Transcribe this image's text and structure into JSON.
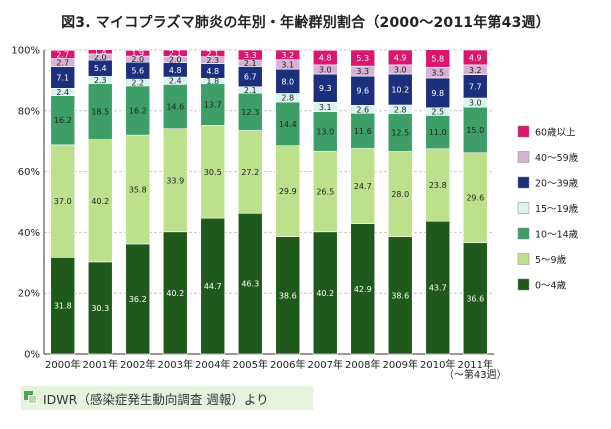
{
  "title": "図3. マイコプラズマ肺炎の年別・年齢群別割合（2000～2011年第43週）",
  "source": "IDWR（感染症発生動向調査 週報）より",
  "chart_data": {
    "type": "bar",
    "stacked": true,
    "percent": true,
    "categories": [
      "2000年",
      "2001年",
      "2002年",
      "2003年",
      "2004年",
      "2005年",
      "2006年",
      "2007年",
      "2008年",
      "2009年",
      "2010年",
      "2011年"
    ],
    "category_sublabels": [
      "",
      "",
      "",
      "",
      "",
      "",
      "",
      "",
      "",
      "",
      "",
      "（～第43週）"
    ],
    "yticks": [
      "0%",
      "20%",
      "40%",
      "60%",
      "80%",
      "100%"
    ],
    "ylim": [
      0,
      100
    ],
    "legend_position": "right",
    "series": [
      {
        "name": "0～4歳",
        "color": "#1f5a1c",
        "light_text": true,
        "values": [
          31.8,
          30.3,
          36.2,
          40.2,
          44.7,
          46.3,
          38.6,
          40.2,
          42.9,
          38.6,
          43.7,
          36.6
        ]
      },
      {
        "name": "5～9歳",
        "color": "#bde08c",
        "values": [
          37.0,
          40.2,
          35.8,
          33.9,
          30.5,
          27.2,
          29.9,
          26.5,
          24.7,
          28.0,
          23.8,
          29.6
        ]
      },
      {
        "name": "10～14歳",
        "color": "#3e9e68",
        "values": [
          16.2,
          18.5,
          16.2,
          14.6,
          13.7,
          12.3,
          14.4,
          13.0,
          11.6,
          12.5,
          11.0,
          15.0
        ]
      },
      {
        "name": "15～19歳",
        "color": "#d9f4f0",
        "values": [
          2.4,
          2.3,
          2.2,
          2.4,
          1.8,
          2.1,
          2.8,
          3.1,
          2.6,
          2.8,
          2.5,
          3.0
        ]
      },
      {
        "name": "20～39歳",
        "color": "#1b2f7c",
        "light_text": true,
        "values": [
          7.1,
          5.4,
          5.6,
          4.8,
          4.8,
          6.7,
          8.0,
          9.3,
          9.6,
          10.2,
          9.8,
          7.7
        ]
      },
      {
        "name": "40～59歳",
        "color": "#d8b2d6",
        "values": [
          2.7,
          2.0,
          2.0,
          2.0,
          2.3,
          2.1,
          3.1,
          3.0,
          3.3,
          3.0,
          3.5,
          3.2
        ]
      },
      {
        "name": "60歳以上",
        "color": "#d9176e",
        "light_text": true,
        "values": [
          2.7,
          1.4,
          1.9,
          2.1,
          2.1,
          3.3,
          3.2,
          4.8,
          5.3,
          4.9,
          5.8,
          4.9
        ]
      }
    ]
  }
}
